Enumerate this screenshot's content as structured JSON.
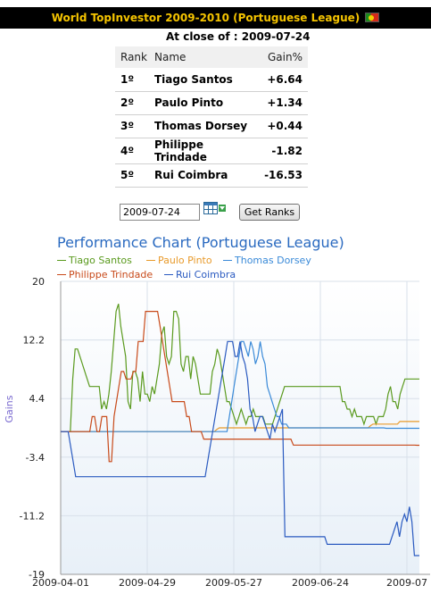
{
  "header": {
    "title": "World TopInvestor 2009-2010 (Portuguese League)"
  },
  "close_label": "At close of : 2009-07-24",
  "ranking": {
    "headers": {
      "rank": "Rank",
      "name": "Name",
      "gain": "Gain%"
    },
    "rows": [
      {
        "rank": "1º",
        "name": "Tiago Santos",
        "gain": "+6.64",
        "positive": true
      },
      {
        "rank": "2º",
        "name": "Paulo Pinto",
        "gain": "+1.34",
        "positive": true
      },
      {
        "rank": "3º",
        "name": "Thomas Dorsey",
        "gain": "+0.44",
        "positive": true
      },
      {
        "rank": "4º",
        "name": "Philippe Trindade",
        "gain": "-1.82",
        "positive": false
      },
      {
        "rank": "5º",
        "name": "Rui Coimbra",
        "gain": "-16.53",
        "positive": false
      }
    ]
  },
  "controls": {
    "date_value": "2009-07-24",
    "get_ranks_label": "Get Ranks"
  },
  "colors": {
    "title_bg": "#000000",
    "title_fg": "#f5c400",
    "positive": "#1f8a1f",
    "negative": "#d01010"
  },
  "chart_data": {
    "type": "line",
    "title": "Performance Chart (Portuguese League)",
    "ylabel": "Gains",
    "ylim": [
      -19,
      20
    ],
    "yticks": [
      "20",
      "12.2",
      "4.4",
      "-3.4",
      "-11.2",
      "-19"
    ],
    "xticks": [
      "2009-04-01",
      "2009-04-29",
      "2009-05-27",
      "2009-06-24",
      "2009-07"
    ],
    "grid": true,
    "legend_position": "top",
    "series": [
      {
        "name": "Tiago Santos",
        "color": "#5a9a1e",
        "values": [
          0,
          0,
          0,
          0,
          0,
          7,
          11,
          11,
          10,
          9,
          8,
          7,
          6,
          6,
          6,
          6,
          6,
          3,
          4,
          3,
          5,
          8,
          12,
          16,
          17,
          14,
          12,
          10,
          4,
          3,
          8,
          8,
          7,
          4,
          8,
          5,
          5,
          4,
          6,
          5,
          7,
          9,
          13,
          14,
          10,
          9,
          10,
          16,
          16,
          15,
          9,
          8,
          10,
          10,
          7,
          10,
          9,
          7,
          5,
          5,
          5,
          5,
          5,
          8,
          9,
          11,
          10,
          8,
          6,
          4,
          4,
          3,
          2,
          1,
          2,
          3,
          2,
          1,
          2,
          2,
          3,
          2,
          2,
          2,
          2,
          1,
          1,
          1,
          1,
          2,
          3,
          4,
          5,
          6,
          6,
          6,
          6,
          6,
          6,
          6,
          6,
          6,
          6,
          6,
          6,
          6,
          6,
          6,
          6,
          6,
          6,
          6,
          6,
          6,
          6,
          6,
          6,
          4,
          4,
          3,
          3,
          2,
          3,
          2,
          2,
          2,
          1,
          2,
          2,
          2,
          2,
          1,
          2,
          2,
          2,
          3,
          5,
          6,
          4,
          4,
          3,
          5,
          6,
          7,
          7,
          7,
          7,
          7,
          7,
          7
        ]
      },
      {
        "name": "Paulo Pinto",
        "color": "#e89a2a",
        "values": [
          0,
          0,
          0,
          0,
          0,
          0,
          0,
          0,
          0,
          0,
          0,
          0,
          0,
          0,
          0,
          0,
          0,
          0,
          0,
          0,
          0,
          0,
          0,
          0,
          0,
          0,
          0,
          0,
          0,
          0,
          0,
          0,
          0,
          0,
          0,
          0,
          0,
          0,
          0,
          0,
          0,
          0,
          0,
          0,
          0,
          0,
          0,
          0,
          0,
          0,
          0,
          0,
          0,
          0,
          0,
          0,
          0,
          0,
          0,
          0,
          0,
          0,
          0,
          0,
          0.3,
          0.5,
          0.5,
          0.5,
          0.5,
          0.5,
          0.5,
          0.5,
          0.5,
          0.5,
          0.5,
          0.5,
          0.5,
          0.5,
          0.5,
          0.5,
          0.5,
          0.5,
          0.5,
          0.5,
          0.5,
          0.5,
          0.5,
          0.5,
          0.5,
          0.5,
          0.5,
          0.5,
          0.5,
          0.5,
          0.5,
          0.5,
          0.5,
          0.5,
          0.5,
          0.5,
          0.5,
          0.5,
          0.5,
          0.5,
          0.5,
          0.5,
          0.5,
          0.5,
          0.5,
          0.5,
          0.5,
          0.5,
          0.5,
          0.5,
          0.5,
          0.5,
          0.5,
          0.5,
          0.5,
          0.5,
          0.5,
          0.5,
          0.5,
          0.5,
          0.5,
          0.5,
          0.5,
          0.8,
          1,
          1,
          1,
          1,
          1,
          1,
          1,
          1,
          1,
          1,
          1,
          1.34,
          1.34,
          1.34,
          1.34,
          1.34,
          1.34,
          1.34,
          1.34,
          1.34
        ]
      },
      {
        "name": "Thomas Dorsey",
        "color": "#3a8ad8",
        "values": [
          0,
          0,
          0,
          0,
          0,
          0,
          0,
          0,
          0,
          0,
          0,
          0,
          0,
          0,
          0,
          0,
          0,
          0,
          0,
          0,
          0,
          0,
          0,
          0,
          0,
          0,
          0,
          0,
          0,
          0,
          0,
          0,
          0,
          0,
          0,
          0,
          0,
          0,
          0,
          0,
          0,
          0,
          0,
          0,
          0,
          0,
          0,
          0,
          0,
          0,
          0,
          0,
          0,
          0,
          0,
          0,
          0,
          0,
          0,
          0,
          0,
          0,
          0,
          0,
          0,
          0,
          0,
          0,
          0,
          0,
          0,
          2,
          4,
          6,
          8,
          10,
          12,
          12,
          11,
          10,
          12,
          11,
          9,
          10,
          12,
          10,
          9,
          6,
          5,
          4,
          3,
          2,
          2,
          1,
          1,
          1,
          0.5,
          0.5,
          0.5,
          0.5,
          0.5,
          0.5,
          0.5,
          0.5,
          0.5,
          0.5,
          0.5,
          0.5,
          0.5,
          0.5,
          0.5,
          0.5,
          0.5,
          0.5,
          0.5,
          0.5,
          0.5,
          0.5,
          0.5,
          0.5,
          0.5,
          0.5,
          0.5,
          0.5,
          0.5,
          0.5,
          0.5,
          0.5,
          0.5,
          0.5,
          0.5,
          0.5,
          0.5,
          0.5,
          0.5,
          0.5,
          0.5,
          0.44,
          0.44,
          0.44,
          0.44,
          0.44,
          0.44,
          0.44,
          0.44,
          0.44,
          0.44,
          0.44,
          0.44,
          0.44,
          0.44,
          0.44
        ]
      },
      {
        "name": "Philippe Trindade",
        "color": "#c84a1a",
        "values": [
          0,
          0,
          0,
          0,
          0,
          0,
          0,
          0,
          0,
          0,
          0,
          0,
          0,
          2,
          2,
          0,
          0,
          2,
          2,
          2,
          -4,
          -4,
          2,
          4,
          6,
          8,
          8,
          7,
          7,
          7,
          8,
          8,
          12,
          12,
          12,
          16,
          16,
          16,
          16,
          16,
          16,
          14,
          12,
          10,
          8,
          6,
          4,
          4,
          4,
          4,
          4,
          4,
          2,
          2,
          0,
          0,
          0,
          0,
          0,
          -1,
          -1,
          -1,
          -1,
          -1,
          -1,
          -1,
          -1,
          -1,
          -1,
          -1,
          -1,
          -1,
          -1,
          -1,
          -1,
          -1,
          -1,
          -1,
          -1,
          -1,
          -1,
          -1,
          -1,
          -1,
          -1,
          -1,
          -1,
          -1,
          -1,
          -1,
          -1,
          -1,
          -1,
          -1,
          -1,
          -1,
          -1.8,
          -1.8,
          -1.8,
          -1.8,
          -1.8,
          -1.8,
          -1.8,
          -1.8,
          -1.8,
          -1.8,
          -1.8,
          -1.8,
          -1.8,
          -1.8,
          -1.8,
          -1.8,
          -1.8,
          -1.8,
          -1.8,
          -1.8,
          -1.8,
          -1.8,
          -1.8,
          -1.8,
          -1.8,
          -1.8,
          -1.8,
          -1.8,
          -1.8,
          -1.8,
          -1.8,
          -1.8,
          -1.8,
          -1.8,
          -1.8,
          -1.8,
          -1.8,
          -1.8,
          -1.8,
          -1.8,
          -1.8,
          -1.8,
          -1.8,
          -1.8,
          -1.8,
          -1.8,
          -1.8,
          -1.8,
          -1.8,
          -1.8,
          -1.8,
          -1.82,
          -1.82
        ]
      },
      {
        "name": "Rui Coimbra",
        "color": "#2a5ac0",
        "values": [
          0,
          0,
          0,
          0,
          -2,
          -4,
          -6,
          -6,
          -6,
          -6,
          -6,
          -6,
          -6,
          -6,
          -6,
          -6,
          -6,
          -6,
          -6,
          -6,
          -6,
          -6,
          -6,
          -6,
          -6,
          -6,
          -6,
          -6,
          -6,
          -6,
          -6,
          -6,
          -6,
          -6,
          -6,
          -6,
          -6,
          -6,
          -6,
          -6,
          -6,
          -6,
          -6,
          -6,
          -6,
          -6,
          -6,
          -6,
          -6,
          -6,
          -6,
          -6,
          -6,
          -6,
          -6,
          -6,
          -6,
          -6,
          -6,
          -4,
          -2,
          0,
          2,
          4,
          6,
          8,
          10,
          12,
          12,
          12,
          10,
          10,
          12,
          10,
          9,
          7,
          3,
          2,
          0,
          1,
          2,
          2,
          1,
          0,
          -1,
          1,
          0,
          1,
          2,
          3,
          -14,
          -14,
          -14,
          -14,
          -14,
          -14,
          -14,
          -14,
          -14,
          -14,
          -14,
          -14,
          -14,
          -14,
          -14,
          -14,
          -14,
          -15,
          -15,
          -15,
          -15,
          -15,
          -15,
          -15,
          -15,
          -15,
          -15,
          -15,
          -15,
          -15,
          -15,
          -15,
          -15,
          -15,
          -15,
          -15,
          -15,
          -15,
          -15,
          -15,
          -15,
          -15,
          -15,
          -14,
          -13,
          -12,
          -14,
          -12,
          -11,
          -12,
          -10,
          -12,
          -16.5,
          -16.5,
          -16.5
        ]
      }
    ]
  }
}
